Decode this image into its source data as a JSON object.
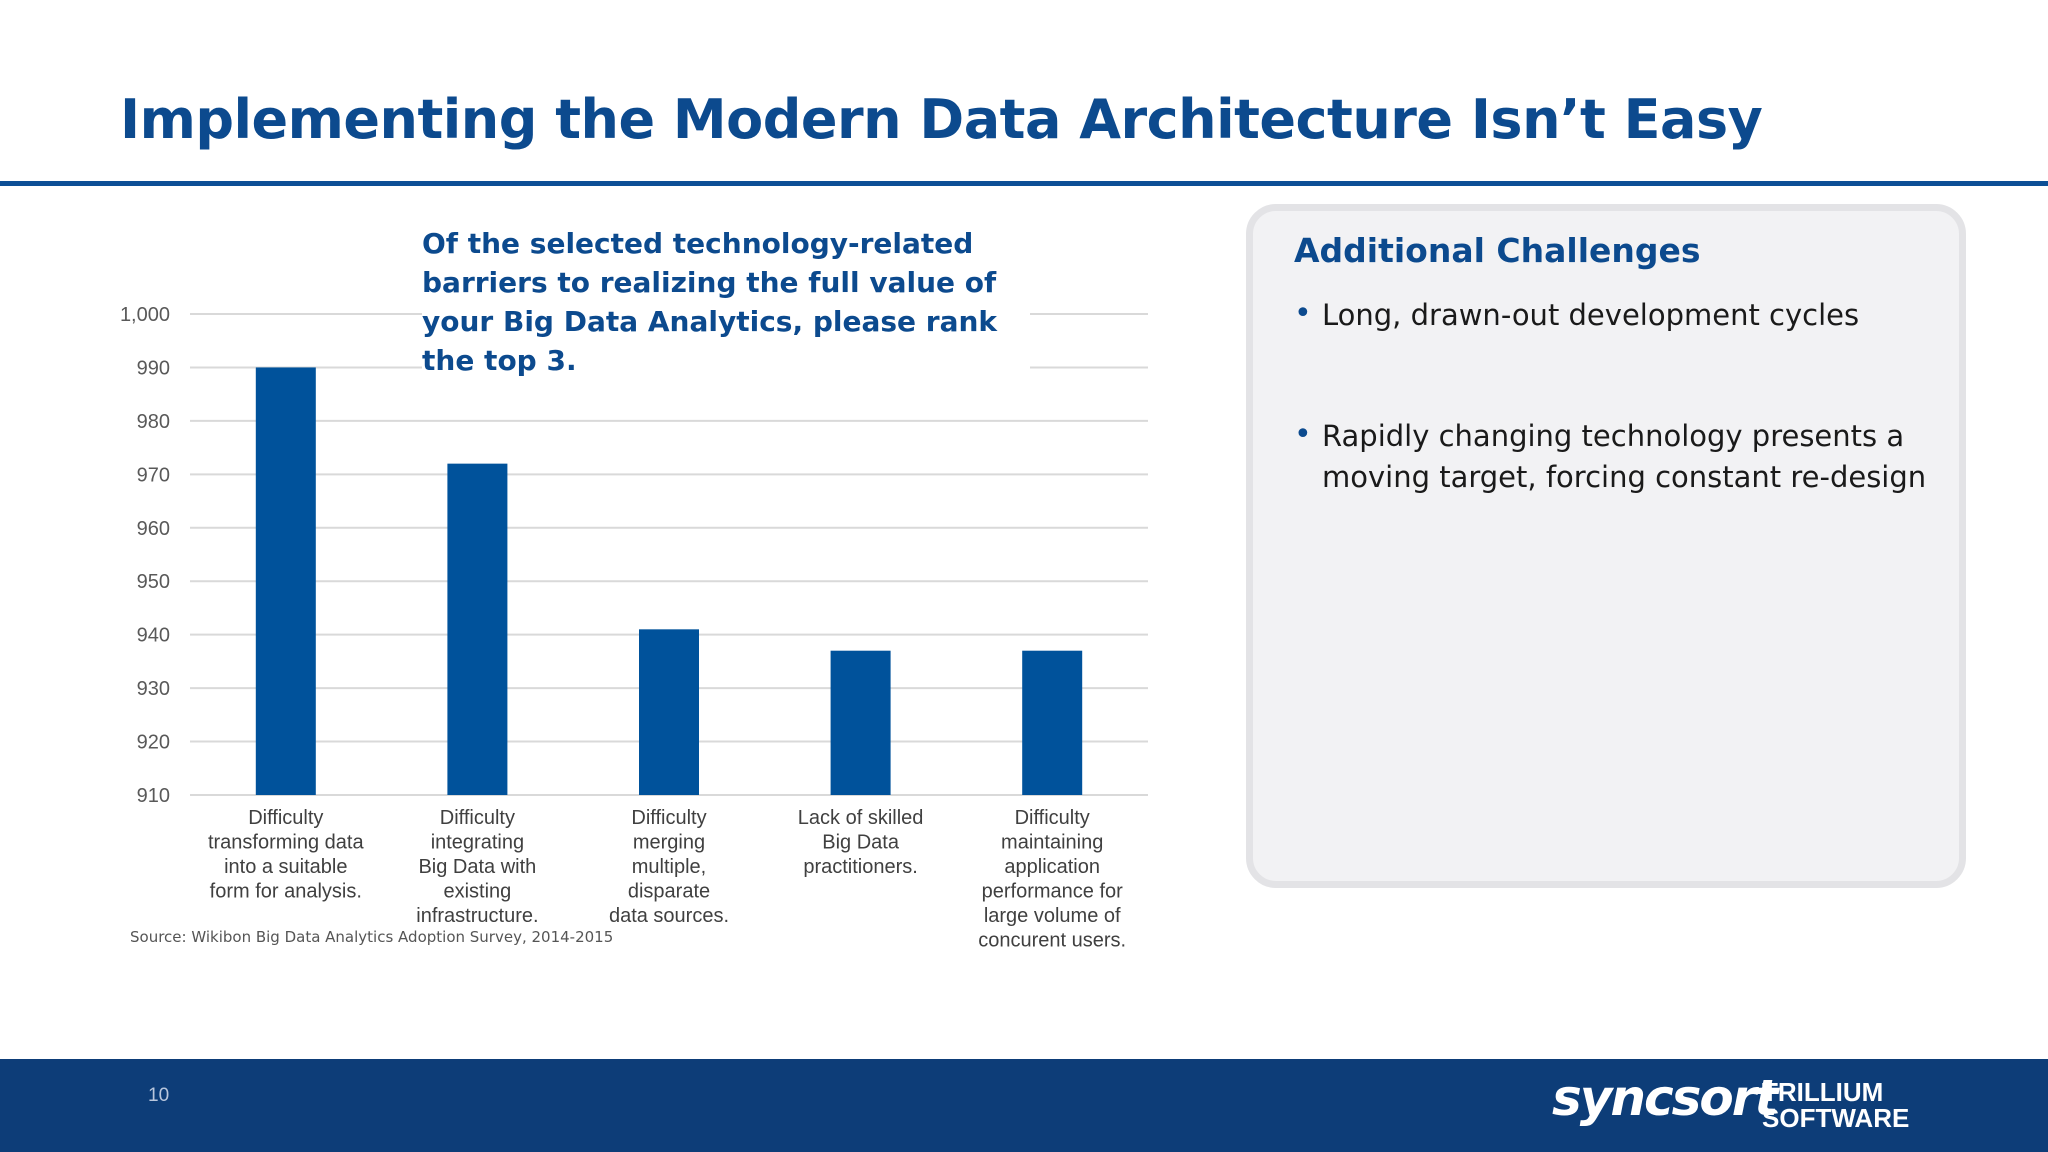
{
  "slide": {
    "title": "Implementing the Modern Data Architecture Isn’t Easy",
    "question": "Of the selected technology-related barriers to realizing the full value of your Big Data Analytics, please rank the top 3.",
    "source": "Source: Wikibon Big Data Analytics Adoption Survey, 2014-2015",
    "page_number": "10"
  },
  "colors": {
    "brand": "#0c4a8e",
    "bar": "#00529b",
    "footer": "#0d3d78"
  },
  "panel": {
    "title": "Additional Challenges",
    "bullets": [
      "Long, drawn-out development cycles",
      "Rapidly changing technology presents a moving target, forcing constant re-design"
    ]
  },
  "footer": {
    "logo_syncsort": "syncsort",
    "logo_trillium_line1": "TRILLIUM",
    "logo_trillium_line2": "SOFTWARE"
  },
  "chart_data": {
    "type": "bar",
    "categories": [
      [
        "Difficulty",
        "transforming data",
        "into a suitable",
        "form for analysis."
      ],
      [
        "Difficulty",
        "integrating",
        "Big Data with",
        "existing",
        "infrastructure."
      ],
      [
        "Difficulty",
        "merging",
        "multiple,",
        "disparate",
        "data sources."
      ],
      [
        "Lack of skilled",
        "Big Data",
        "practitioners."
      ],
      [
        "Difficulty",
        "maintaining",
        "application",
        "performance for",
        "large volume of",
        "concurent users."
      ]
    ],
    "values": [
      990,
      972,
      941,
      937,
      937
    ],
    "ylim": [
      910,
      1000
    ],
    "yticks": [
      910,
      920,
      930,
      940,
      950,
      960,
      970,
      980,
      990,
      1000
    ],
    "ytick_labels": [
      "910",
      "920",
      "930",
      "940",
      "950",
      "960",
      "970",
      "980",
      "990",
      "1,000"
    ],
    "grid": true,
    "legend": "none"
  }
}
